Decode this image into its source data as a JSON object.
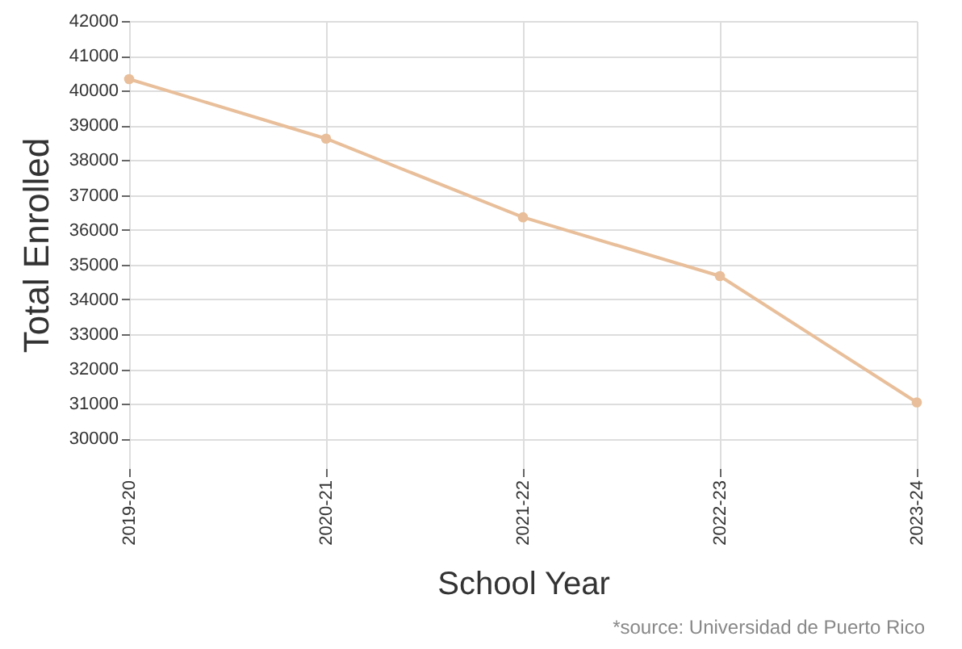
{
  "chart_data": {
    "type": "line",
    "xlabel": "School Year",
    "ylabel": "Total Enrolled",
    "categories": [
      "2019-20",
      "2020-21",
      "2021-22",
      "2022-23",
      "2023-24"
    ],
    "series": [
      {
        "color": "#e8bf9a",
        "values": [
          40330,
          38620,
          36360,
          34670,
          31040
        ]
      }
    ],
    "ylim": [
      29150,
      42000
    ],
    "yticks": [
      30000,
      31000,
      32000,
      33000,
      34000,
      35000,
      36000,
      37000,
      38000,
      39000,
      40000,
      41000,
      42000
    ],
    "grid": true,
    "marker": "circle",
    "line_style": "solid",
    "annotations": [
      "*source: Universidad de Puerto Rico"
    ]
  }
}
